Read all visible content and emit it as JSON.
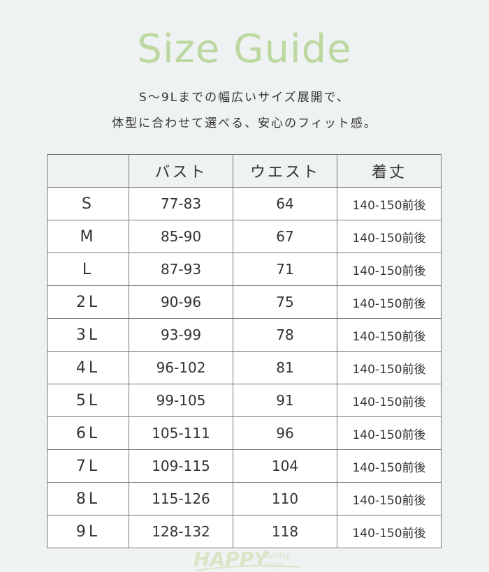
{
  "title": "Size Guide",
  "subtitle_lines": [
    "S〜9Lまでの幅広いサイズ展開で、",
    "体型に合わせて選べる、安心のフィット感。"
  ],
  "table": {
    "headers": [
      "",
      "バスト",
      "ウエスト",
      "着丈"
    ],
    "rows": [
      [
        "S",
        "77-83",
        "64",
        "140-150前後"
      ],
      [
        "M",
        "85-90",
        "67",
        "140-150前後"
      ],
      [
        "L",
        "87-93",
        "71",
        "140-150前後"
      ],
      [
        "2L",
        "90-96",
        "75",
        "140-150前後"
      ],
      [
        "3L",
        "93-99",
        "78",
        "140-150前後"
      ],
      [
        "4L",
        "96-102",
        "81",
        "140-150前後"
      ],
      [
        "5L",
        "99-105",
        "91",
        "140-150前後"
      ],
      [
        "6L",
        "105-111",
        "96",
        "140-150前後"
      ],
      [
        "7L",
        "109-115",
        "104",
        "140-150前後"
      ],
      [
        "8L",
        "115-126",
        "110",
        "140-150前後"
      ],
      [
        "9L",
        "128-132",
        "118",
        "140-150前後"
      ]
    ]
  },
  "watermark": {
    "text_main": "HAPPY",
    "text_sub1": "Sunny",
    "text_sub2": "shop"
  },
  "colors": {
    "title": "#bcd8a0",
    "background": "#eff2f2",
    "border": "#777777"
  }
}
